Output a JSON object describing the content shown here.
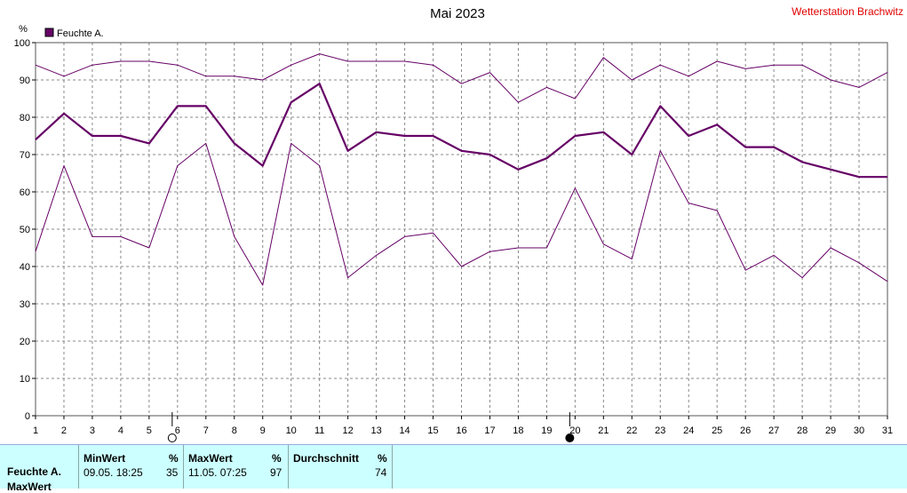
{
  "header": {
    "title": "Mai 2023",
    "station": "Wetterstation Brachwitz"
  },
  "chart_data": {
    "type": "line",
    "title": "Mai 2023",
    "ylabel": "%",
    "ylim": [
      0,
      100
    ],
    "yticks": [
      0,
      10,
      20,
      30,
      40,
      50,
      60,
      70,
      80,
      90,
      100
    ],
    "x": [
      1,
      2,
      3,
      4,
      5,
      6,
      7,
      8,
      9,
      10,
      11,
      12,
      13,
      14,
      15,
      16,
      17,
      18,
      19,
      20,
      21,
      22,
      23,
      24,
      25,
      26,
      27,
      28,
      29,
      30,
      31
    ],
    "legend": {
      "label": "Feuchte A.",
      "color": "#660066",
      "placement": "top-left"
    },
    "grid": true,
    "series": [
      {
        "role": "max",
        "values": [
          94,
          91,
          94,
          95,
          95,
          94,
          91,
          91,
          90,
          94,
          97,
          95,
          95,
          95,
          94,
          89,
          92,
          84,
          88,
          85,
          96,
          90,
          94,
          91,
          95,
          93,
          94,
          94,
          90,
          88,
          92
        ]
      },
      {
        "role": "avg",
        "values": [
          74,
          81,
          75,
          75,
          73,
          83,
          83,
          73,
          67,
          84,
          89,
          71,
          76,
          75,
          75,
          71,
          70,
          66,
          69,
          75,
          76,
          70,
          83,
          75,
          78,
          72,
          72,
          68,
          66,
          64,
          64
        ]
      },
      {
        "role": "min",
        "values": [
          44,
          67,
          48,
          48,
          45,
          67,
          73,
          48,
          35,
          73,
          67,
          37,
          43,
          48,
          49,
          40,
          44,
          45,
          45,
          61,
          46,
          42,
          71,
          57,
          55,
          39,
          43,
          37,
          45,
          41,
          36
        ]
      }
    ],
    "moon_markers": [
      {
        "day": 6,
        "phase": "full-moon"
      },
      {
        "day": 20,
        "phase": "new-moon"
      }
    ]
  },
  "stats": {
    "row_label": "Feuchte A.",
    "row_label2": "MaxWert",
    "min": {
      "header": "MinWert",
      "unit": "%",
      "date": "09.05.  18:25",
      "value": "35"
    },
    "max": {
      "header": "MaxWert",
      "unit": "%",
      "date": "11.05.  07:25",
      "value": "97"
    },
    "avg": {
      "header": "Durchschnitt",
      "unit": "%",
      "value": "74"
    }
  }
}
